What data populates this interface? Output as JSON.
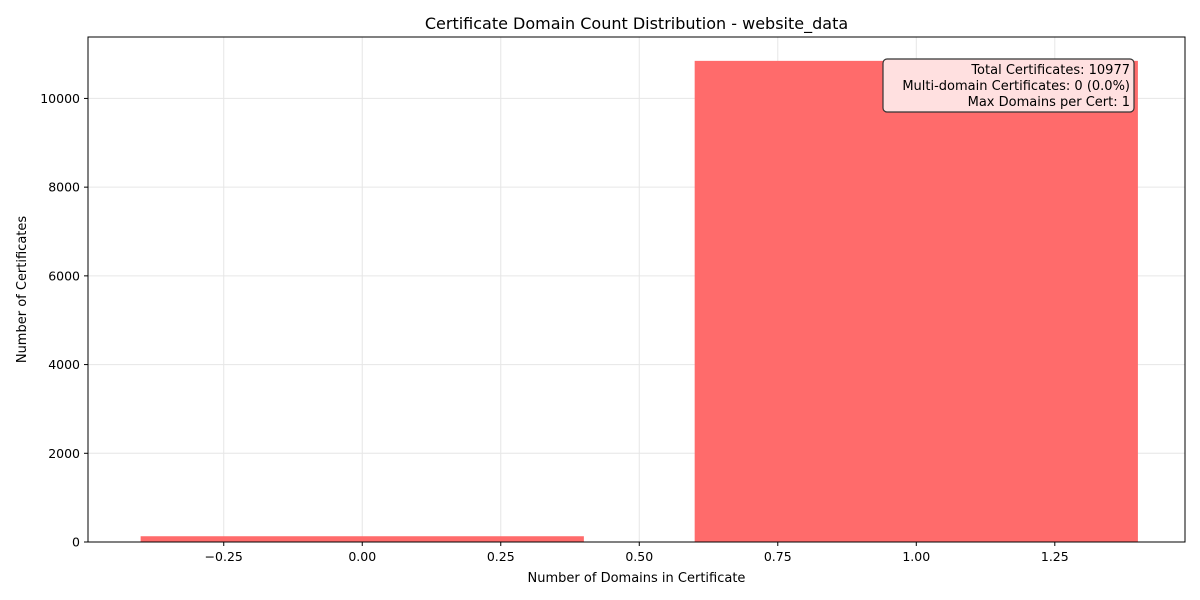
{
  "chart_data": {
    "type": "bar",
    "title": "Certificate Domain Count Distribution - website_data",
    "xlabel": "Number of Domains in Certificate",
    "ylabel": "Number of Certificates",
    "xlim": [
      -0.495,
      1.485
    ],
    "ylim": [
      0,
      11385
    ],
    "xticks": [
      -0.25,
      0.0,
      0.25,
      0.5,
      0.75,
      1.0,
      1.25
    ],
    "xtick_labels": [
      "−0.25",
      "0.00",
      "0.25",
      "0.50",
      "0.75",
      "1.00",
      "1.25"
    ],
    "yticks": [
      0,
      2000,
      4000,
      6000,
      8000,
      10000
    ],
    "ytick_labels": [
      "0",
      "2000",
      "4000",
      "6000",
      "8000",
      "10000"
    ],
    "grid": true,
    "bar_width": 0.8,
    "bar_color": "#ff6b6b",
    "x": [
      0,
      1
    ],
    "values": [
      130,
      10847
    ],
    "stats_box": {
      "lines": [
        "Total Certificates: 10977",
        "Multi-domain Certificates: 0 (0.0%)",
        "Max Domains per Cert: 1"
      ],
      "placement": "top-right",
      "facecolor": "#ffe0e0"
    }
  }
}
